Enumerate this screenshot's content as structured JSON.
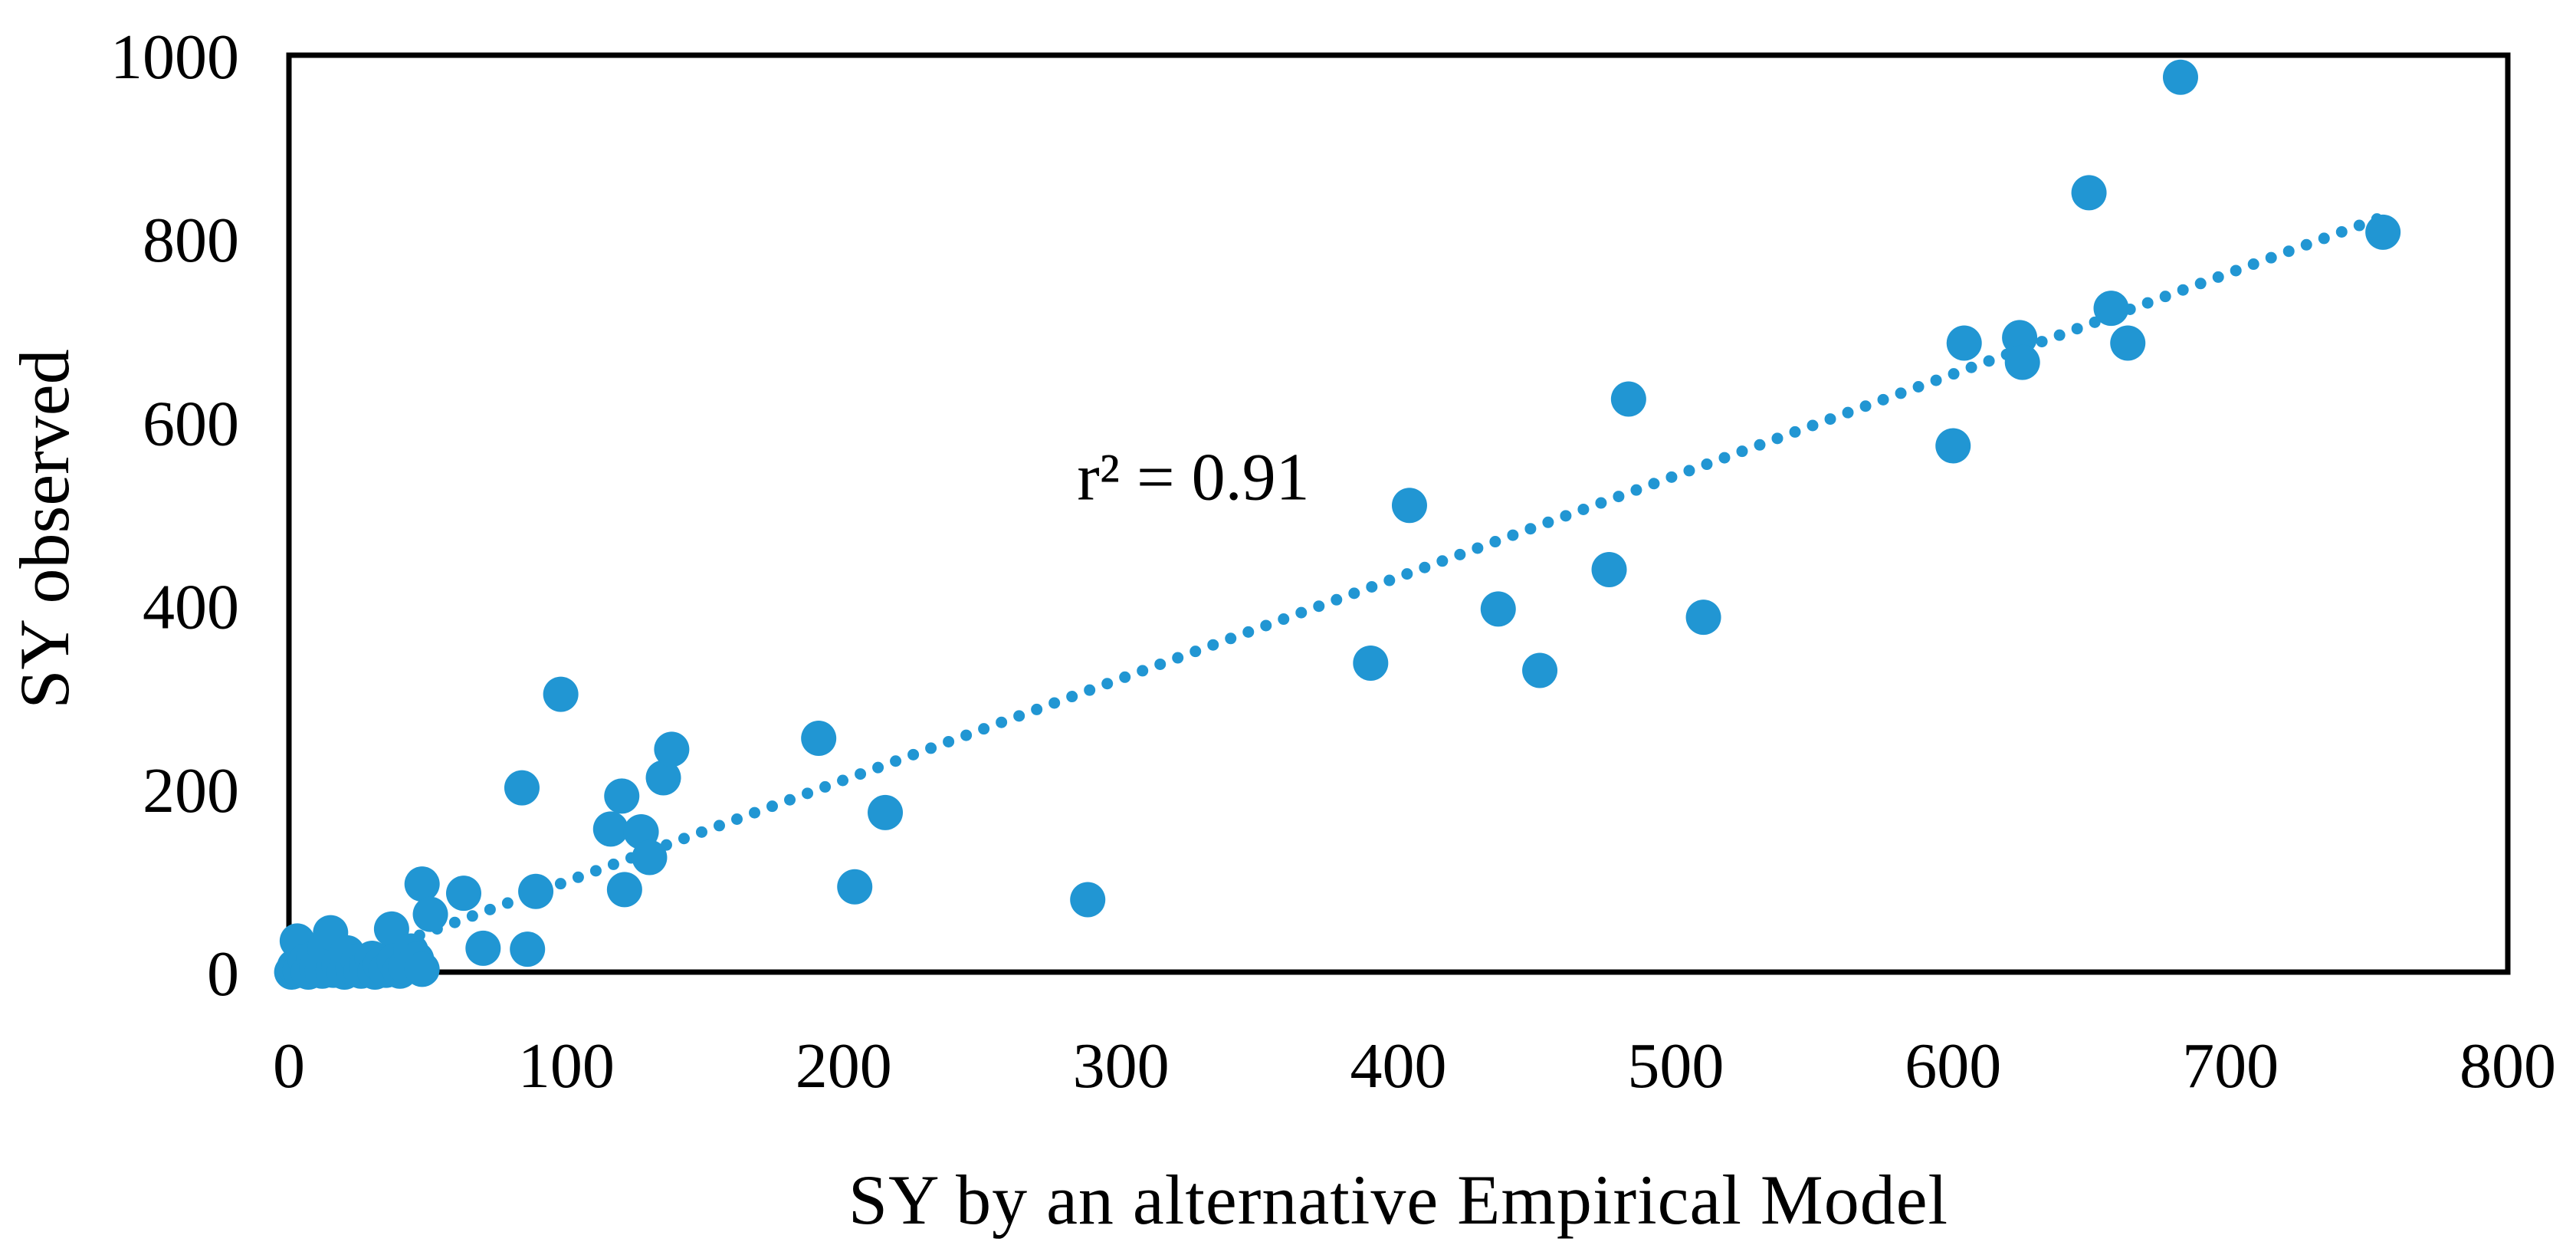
{
  "figure": {
    "x_axis_title": "SY by an alternative Empirical Model",
    "y_axis_title": "SY observed",
    "annotation": "r² = 0.91",
    "background_color": "#ffffff",
    "axis_color": "#000000"
  },
  "chart_data": {
    "type": "scatter",
    "title": "",
    "xlabel": "SY by an alternative Empirical Model",
    "ylabel": "SY observed",
    "xlim": [
      0,
      800
    ],
    "ylim": [
      0,
      1000
    ],
    "x_ticks": [
      0,
      100,
      200,
      300,
      400,
      500,
      600,
      700,
      800
    ],
    "y_ticks": [
      0,
      200,
      400,
      600,
      800,
      1000
    ],
    "grid": false,
    "legend_position": "none",
    "marker_color": "#2196D3",
    "marker_radius_px": 23,
    "annotation_text": "r² = 0.91",
    "trendline": {
      "style": "dotted",
      "color": "#2196D3",
      "slope": 1.107,
      "intercept": -12,
      "x_start": 28,
      "x_end": 753
    },
    "points": [
      [
        1,
        0
      ],
      [
        2,
        6
      ],
      [
        3,
        34
      ],
      [
        4,
        2
      ],
      [
        6,
        12
      ],
      [
        7,
        0
      ],
      [
        9,
        15
      ],
      [
        10,
        5
      ],
      [
        12,
        1
      ],
      [
        13,
        25
      ],
      [
        15,
        43
      ],
      [
        16,
        2
      ],
      [
        18,
        8
      ],
      [
        20,
        0
      ],
      [
        21,
        21
      ],
      [
        23,
        5
      ],
      [
        25,
        12
      ],
      [
        26,
        1
      ],
      [
        28,
        6
      ],
      [
        30,
        15
      ],
      [
        31,
        0
      ],
      [
        33,
        8
      ],
      [
        35,
        2
      ],
      [
        37,
        47
      ],
      [
        38,
        12
      ],
      [
        40,
        1
      ],
      [
        42,
        6
      ],
      [
        44,
        23
      ],
      [
        46,
        14
      ],
      [
        48,
        3
      ],
      [
        48,
        96
      ],
      [
        51,
        63
      ],
      [
        63,
        86
      ],
      [
        70,
        26
      ],
      [
        84,
        201
      ],
      [
        86,
        25
      ],
      [
        89,
        88
      ],
      [
        98,
        303
      ],
      [
        116,
        156
      ],
      [
        120,
        192
      ],
      [
        121,
        90
      ],
      [
        127,
        153
      ],
      [
        130,
        125
      ],
      [
        135,
        212
      ],
      [
        138,
        243
      ],
      [
        191,
        255
      ],
      [
        204,
        93
      ],
      [
        215,
        174
      ],
      [
        288,
        79
      ],
      [
        390,
        337
      ],
      [
        404,
        509
      ],
      [
        436,
        396
      ],
      [
        451,
        329
      ],
      [
        476,
        439
      ],
      [
        483,
        625
      ],
      [
        510,
        387
      ],
      [
        600,
        574
      ],
      [
        604,
        686
      ],
      [
        624,
        692
      ],
      [
        625,
        665
      ],
      [
        649,
        850
      ],
      [
        657,
        724
      ],
      [
        663,
        686
      ],
      [
        682,
        976
      ],
      [
        755,
        807
      ]
    ]
  }
}
